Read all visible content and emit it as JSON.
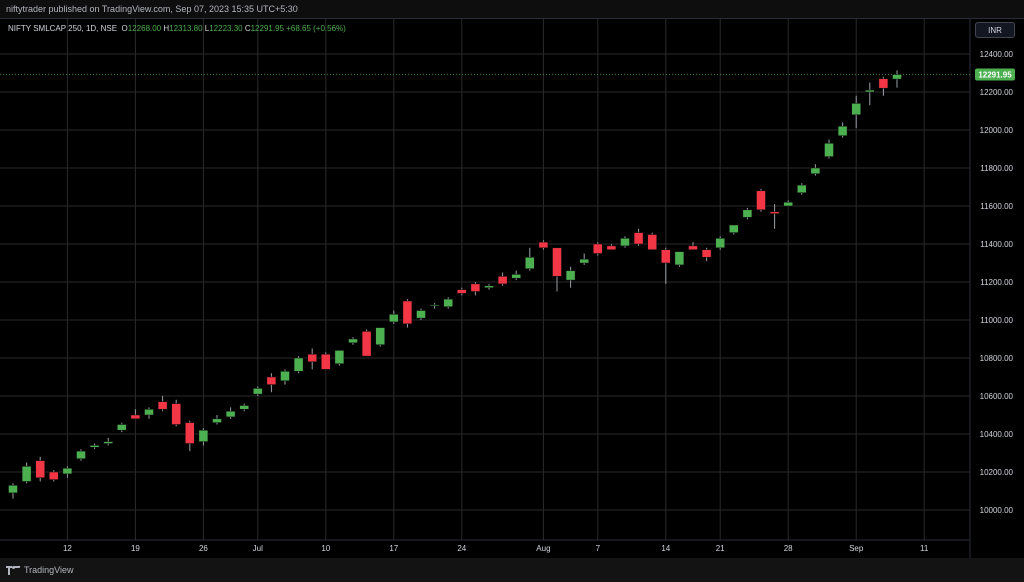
{
  "header": {
    "published": "niftytrader published on TradingView.com, Sep 07, 2023 15:35 UTC+5:30"
  },
  "legend": {
    "symbol": "NIFTY SMLCAP 250, 1D, NSE",
    "o_label": "O",
    "o": "12268.00",
    "h_label": "H",
    "h": "12313.80",
    "l_label": "L",
    "l": "12223.30",
    "c_label": "C",
    "c": "12291.95",
    "change": "+68.65 (+0.56%)"
  },
  "currency_button": "INR",
  "footer": {
    "brand": "TradingView"
  },
  "colors": {
    "up": "#4caf50",
    "down": "#f23645",
    "grid": "#2a2a2a",
    "last_price_bg": "#4caf50"
  },
  "chart_data": {
    "type": "candlestick",
    "title": "",
    "y_ticks": [
      10000,
      10200,
      10400,
      10600,
      10800,
      11000,
      11200,
      11400,
      11600,
      11800,
      12000,
      12200,
      12400
    ],
    "y_tick_labels": [
      "10000.00",
      "10200.00",
      "10400.00",
      "10600.00",
      "10800.00",
      "11000.00",
      "11200.00",
      "11400.00",
      "11600.00",
      "11800.00",
      "12000.00",
      "12200.00",
      "12400.00"
    ],
    "ylim": [
      9850,
      12520
    ],
    "last_price": "12291.95",
    "x_ticks": [
      {
        "label": "12",
        "bar": 4
      },
      {
        "label": "19",
        "bar": 9
      },
      {
        "label": "26",
        "bar": 14
      },
      {
        "label": "Jul",
        "bar": 18
      },
      {
        "label": "10",
        "bar": 23
      },
      {
        "label": "17",
        "bar": 28
      },
      {
        "label": "24",
        "bar": 33
      },
      {
        "label": "Aug",
        "bar": 39
      },
      {
        "label": "7",
        "bar": 43
      },
      {
        "label": "14",
        "bar": 48
      },
      {
        "label": "21",
        "bar": 52
      },
      {
        "label": "28",
        "bar": 57
      },
      {
        "label": "Sep",
        "bar": 62
      },
      {
        "label": "11",
        "bar": 67
      }
    ],
    "candles": [
      {
        "date": "2023-06-05",
        "o": 10090,
        "h": 10140,
        "l": 10060,
        "c": 10130
      },
      {
        "date": "2023-06-06",
        "o": 10150,
        "h": 10250,
        "l": 10140,
        "c": 10230
      },
      {
        "date": "2023-06-07",
        "o": 10260,
        "h": 10280,
        "l": 10150,
        "c": 10170
      },
      {
        "date": "2023-06-08",
        "o": 10200,
        "h": 10210,
        "l": 10150,
        "c": 10160
      },
      {
        "date": "2023-06-09",
        "o": 10190,
        "h": 10230,
        "l": 10170,
        "c": 10220
      },
      {
        "date": "2023-06-12",
        "o": 10270,
        "h": 10320,
        "l": 10260,
        "c": 10310
      },
      {
        "date": "2023-06-13",
        "o": 10330,
        "h": 10350,
        "l": 10320,
        "c": 10340
      },
      {
        "date": "2023-06-14",
        "o": 10350,
        "h": 10380,
        "l": 10340,
        "c": 10360
      },
      {
        "date": "2023-06-15",
        "o": 10420,
        "h": 10460,
        "l": 10410,
        "c": 10450
      },
      {
        "date": "2023-06-16",
        "o": 10500,
        "h": 10530,
        "l": 10480,
        "c": 10480
      },
      {
        "date": "2023-06-19",
        "o": 10500,
        "h": 10540,
        "l": 10480,
        "c": 10530
      },
      {
        "date": "2023-06-20",
        "o": 10570,
        "h": 10600,
        "l": 10520,
        "c": 10530
      },
      {
        "date": "2023-06-21",
        "o": 10560,
        "h": 10580,
        "l": 10440,
        "c": 10450
      },
      {
        "date": "2023-06-23",
        "o": 10460,
        "h": 10470,
        "l": 10310,
        "c": 10350
      },
      {
        "date": "2023-06-26",
        "o": 10360,
        "h": 10430,
        "l": 10340,
        "c": 10420
      },
      {
        "date": "2023-06-27",
        "o": 10460,
        "h": 10500,
        "l": 10450,
        "c": 10480
      },
      {
        "date": "2023-06-28",
        "o": 10490,
        "h": 10540,
        "l": 10480,
        "c": 10520
      },
      {
        "date": "2023-06-30",
        "o": 10530,
        "h": 10560,
        "l": 10520,
        "c": 10550
      },
      {
        "date": "2023-07-03",
        "o": 10610,
        "h": 10650,
        "l": 10600,
        "c": 10640
      },
      {
        "date": "2023-07-04",
        "o": 10700,
        "h": 10720,
        "l": 10620,
        "c": 10660
      },
      {
        "date": "2023-07-05",
        "o": 10680,
        "h": 10740,
        "l": 10660,
        "c": 10730
      },
      {
        "date": "2023-07-06",
        "o": 10730,
        "h": 10810,
        "l": 10720,
        "c": 10800
      },
      {
        "date": "2023-07-07",
        "o": 10820,
        "h": 10850,
        "l": 10740,
        "c": 10780
      },
      {
        "date": "2023-07-10",
        "o": 10820,
        "h": 10830,
        "l": 10740,
        "c": 10740
      },
      {
        "date": "2023-07-11",
        "o": 10770,
        "h": 10840,
        "l": 10760,
        "c": 10840
      },
      {
        "date": "2023-07-12",
        "o": 10880,
        "h": 10910,
        "l": 10870,
        "c": 10900
      },
      {
        "date": "2023-07-13",
        "o": 10940,
        "h": 10950,
        "l": 10810,
        "c": 10810
      },
      {
        "date": "2023-07-14",
        "o": 10870,
        "h": 10960,
        "l": 10860,
        "c": 10960
      },
      {
        "date": "2023-07-17",
        "o": 10990,
        "h": 11050,
        "l": 10980,
        "c": 11030
      },
      {
        "date": "2023-07-18",
        "o": 11100,
        "h": 11110,
        "l": 10960,
        "c": 10980
      },
      {
        "date": "2023-07-19",
        "o": 11010,
        "h": 11060,
        "l": 11000,
        "c": 11050
      },
      {
        "date": "2023-07-20",
        "o": 11080,
        "h": 11090,
        "l": 11060,
        "c": 11080
      },
      {
        "date": "2023-07-21",
        "o": 11070,
        "h": 11120,
        "l": 11060,
        "c": 11110
      },
      {
        "date": "2023-07-24",
        "o": 11160,
        "h": 11170,
        "l": 11130,
        "c": 11140
      },
      {
        "date": "2023-07-25",
        "o": 11190,
        "h": 11200,
        "l": 11130,
        "c": 11150
      },
      {
        "date": "2023-07-26",
        "o": 11170,
        "h": 11190,
        "l": 11160,
        "c": 11180
      },
      {
        "date": "2023-07-27",
        "o": 11230,
        "h": 11250,
        "l": 11180,
        "c": 11190
      },
      {
        "date": "2023-07-28",
        "o": 11220,
        "h": 11260,
        "l": 11210,
        "c": 11240
      },
      {
        "date": "2023-07-31",
        "o": 11270,
        "h": 11380,
        "l": 11260,
        "c": 11330
      },
      {
        "date": "2023-08-01",
        "o": 11410,
        "h": 11420,
        "l": 11370,
        "c": 11380
      },
      {
        "date": "2023-08-02",
        "o": 11380,
        "h": 11380,
        "l": 11150,
        "c": 11230
      },
      {
        "date": "2023-08-03",
        "o": 11210,
        "h": 11280,
        "l": 11170,
        "c": 11260
      },
      {
        "date": "2023-08-04",
        "o": 11300,
        "h": 11350,
        "l": 11290,
        "c": 11320
      },
      {
        "date": "2023-08-07",
        "o": 11400,
        "h": 11410,
        "l": 11340,
        "c": 11350
      },
      {
        "date": "2023-08-08",
        "o": 11390,
        "h": 11400,
        "l": 11370,
        "c": 11370
      },
      {
        "date": "2023-08-09",
        "o": 11390,
        "h": 11440,
        "l": 11380,
        "c": 11430
      },
      {
        "date": "2023-08-10",
        "o": 11460,
        "h": 11480,
        "l": 11390,
        "c": 11400
      },
      {
        "date": "2023-08-11",
        "o": 11450,
        "h": 11460,
        "l": 11370,
        "c": 11370
      },
      {
        "date": "2023-08-14",
        "o": 11370,
        "h": 11380,
        "l": 11190,
        "c": 11300
      },
      {
        "date": "2023-08-16",
        "o": 11290,
        "h": 11360,
        "l": 11280,
        "c": 11360
      },
      {
        "date": "2023-08-17",
        "o": 11390,
        "h": 11410,
        "l": 11370,
        "c": 11370
      },
      {
        "date": "2023-08-18",
        "o": 11370,
        "h": 11380,
        "l": 11310,
        "c": 11330
      },
      {
        "date": "2023-08-21",
        "o": 11380,
        "h": 11440,
        "l": 11370,
        "c": 11430
      },
      {
        "date": "2023-08-22",
        "o": 11460,
        "h": 11500,
        "l": 11450,
        "c": 11500
      },
      {
        "date": "2023-08-23",
        "o": 11540,
        "h": 11590,
        "l": 11530,
        "c": 11580
      },
      {
        "date": "2023-08-24",
        "o": 11680,
        "h": 11690,
        "l": 11570,
        "c": 11580
      },
      {
        "date": "2023-08-25",
        "o": 11570,
        "h": 11610,
        "l": 11480,
        "c": 11560
      },
      {
        "date": "2023-08-28",
        "o": 11600,
        "h": 11630,
        "l": 11600,
        "c": 11620
      },
      {
        "date": "2023-08-29",
        "o": 11670,
        "h": 11720,
        "l": 11660,
        "c": 11710
      },
      {
        "date": "2023-08-30",
        "o": 11770,
        "h": 11820,
        "l": 11760,
        "c": 11800
      },
      {
        "date": "2023-08-31",
        "o": 11860,
        "h": 11950,
        "l": 11850,
        "c": 11930
      },
      {
        "date": "2023-09-01",
        "o": 11970,
        "h": 12040,
        "l": 11960,
        "c": 12020
      },
      {
        "date": "2023-09-04",
        "o": 12080,
        "h": 12180,
        "l": 12010,
        "c": 12140
      },
      {
        "date": "2023-09-05",
        "o": 12200,
        "h": 12250,
        "l": 12130,
        "c": 12210
      },
      {
        "date": "2023-09-06",
        "o": 12270,
        "h": 12280,
        "l": 12180,
        "c": 12220
      },
      {
        "date": "2023-09-07",
        "o": 12268,
        "h": 12313.8,
        "l": 12223.3,
        "c": 12291.95
      }
    ]
  }
}
